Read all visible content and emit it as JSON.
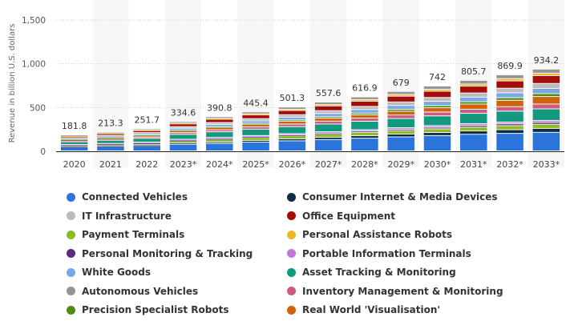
{
  "chart_data": {
    "type": "bar",
    "stacked": true,
    "title": "",
    "xlabel": "",
    "ylabel": "Revenue in billion U.S. dollars",
    "ylim": [
      0,
      1500
    ],
    "yticks": [
      "0",
      "500",
      "1,000",
      "1,500"
    ],
    "ytick_values": [
      0,
      500,
      1000,
      1500
    ],
    "grid": true,
    "legend_position": "bottom",
    "categories": [
      "2020",
      "2021",
      "2022",
      "2023*",
      "2024*",
      "2025*",
      "2026*",
      "2027*",
      "2028*",
      "2029*",
      "2030*",
      "2031*",
      "2032*",
      "2033*"
    ],
    "totals": [
      181.8,
      213.3,
      251.7,
      334.6,
      390.8,
      445.4,
      501.3,
      557.6,
      616.9,
      679,
      742,
      805.7,
      869.9,
      934.2
    ],
    "total_labels": [
      "181.8",
      "213.3",
      "251.7",
      "334.6",
      "390.8",
      "445.4",
      "501.3",
      "557.6",
      "616.9",
      "679",
      "742",
      "805.7",
      "869.9",
      "934.2"
    ],
    "stack_order": [
      "Connected Vehicles",
      "Consumer Internet & Media Devices",
      "Payment Terminals",
      "Personal Monitoring & Tracking",
      "Portable Information Terminals",
      "Asset Tracking & Monitoring",
      "Inventory Management & Monitoring",
      "Real World 'Visualisation'",
      "Precision Specialist Robots",
      "White Goods",
      "IT Infrastructure",
      "Office Equipment",
      "Personal Assistance Robots",
      "Autonomous Vehicles"
    ],
    "series": [
      {
        "name": "Connected Vehicles",
        "color": "#2a74db",
        "values": [
          40,
          48,
          58,
          75,
          85,
          100,
          115,
          130,
          145,
          160,
          175,
          190,
          200,
          212
        ]
      },
      {
        "name": "IT Infrastructure",
        "color": "#bbbbbb",
        "values": [
          8,
          9,
          11,
          18,
          21,
          25,
          28,
          32,
          36,
          40,
          44,
          48,
          52,
          56
        ]
      },
      {
        "name": "Payment Terminals",
        "color": "#8bbc21",
        "values": [
          14,
          16,
          18,
          26,
          30,
          32,
          34,
          36,
          38,
          40,
          42,
          44,
          46,
          48
        ]
      },
      {
        "name": "Personal Monitoring & Tracking",
        "color": "#5b2a7c",
        "values": [
          4,
          5,
          6,
          8,
          9,
          10,
          11,
          12,
          14,
          16,
          18,
          20,
          21,
          22
        ]
      },
      {
        "name": "White Goods",
        "color": "#7aa7e6",
        "values": [
          12,
          14,
          16,
          22,
          26,
          29,
          32,
          36,
          40,
          44,
          48,
          52,
          56,
          60
        ]
      },
      {
        "name": "Autonomous Vehicles",
        "color": "#959595",
        "values": [
          10,
          12,
          14,
          18,
          20,
          23,
          26,
          28,
          31,
          34,
          38,
          42,
          44,
          46
        ]
      },
      {
        "name": "Precision Specialist Robots",
        "color": "#4c8f0f",
        "values": [
          4,
          5,
          6,
          9,
          11,
          13,
          15,
          17,
          20,
          22,
          25,
          27,
          30,
          33
        ]
      },
      {
        "name": "Consumer Internet & Media Devices",
        "color": "#0f2b46",
        "values": [
          8,
          9,
          10,
          14,
          17,
          20,
          23,
          26,
          29,
          32,
          35,
          38,
          42,
          45
        ]
      },
      {
        "name": "Office Equipment",
        "color": "#a50d0d",
        "values": [
          18,
          20,
          23,
          32,
          37,
          42,
          48,
          54,
          60,
          66,
          72,
          78,
          84,
          90
        ]
      },
      {
        "name": "Personal Assistance Robots",
        "color": "#f0b52a",
        "values": [
          4,
          5,
          6,
          8,
          10,
          12,
          14,
          16,
          18,
          20,
          22,
          24,
          26,
          28
        ]
      },
      {
        "name": "Portable Information Terminals",
        "color": "#c477e0",
        "values": [
          6,
          7,
          8,
          10,
          12,
          13,
          14,
          15,
          16,
          17,
          18,
          19,
          20,
          21
        ]
      },
      {
        "name": "Asset Tracking & Monitoring",
        "color": "#119a7e",
        "values": [
          30,
          36,
          44,
          56,
          65,
          73,
          80,
          88,
          96,
          105,
          112,
          118,
          125,
          132
        ]
      },
      {
        "name": "Inventory Management & Monitoring",
        "color": "#cc5c80",
        "values": [
          12,
          14,
          16,
          20,
          23,
          26,
          30,
          33,
          37,
          40,
          44,
          47,
          51,
          55
        ]
      },
      {
        "name": "Real World 'Visualisation'",
        "color": "#d0620c",
        "values": [
          11.8,
          13.3,
          15.7,
          18.6,
          24.8,
          27.4,
          31.3,
          34.6,
          36.9,
          43,
          49,
          58.7,
          72.9,
          86.2
        ]
      }
    ]
  },
  "legend": {
    "items": [
      {
        "label": "Connected Vehicles",
        "color": "#2a74db"
      },
      {
        "label": "Consumer Internet & Media Devices",
        "color": "#0f2b46"
      },
      {
        "label": "IT Infrastructure",
        "color": "#bbbbbb"
      },
      {
        "label": "Office Equipment",
        "color": "#a50d0d"
      },
      {
        "label": "Payment Terminals",
        "color": "#8bbc21"
      },
      {
        "label": "Personal Assistance Robots",
        "color": "#f0b52a"
      },
      {
        "label": "Personal Monitoring & Tracking",
        "color": "#5b2a7c"
      },
      {
        "label": "Portable Information Terminals",
        "color": "#c477e0"
      },
      {
        "label": "White Goods",
        "color": "#7aa7e6"
      },
      {
        "label": "Asset Tracking & Monitoring",
        "color": "#119a7e"
      },
      {
        "label": "Autonomous Vehicles",
        "color": "#959595"
      },
      {
        "label": "Inventory Management & Monitoring",
        "color": "#cc5c80"
      },
      {
        "label": "Precision Specialist Robots",
        "color": "#4c8f0f"
      },
      {
        "label": "Real World 'Visualisation'",
        "color": "#d0620c"
      }
    ]
  }
}
